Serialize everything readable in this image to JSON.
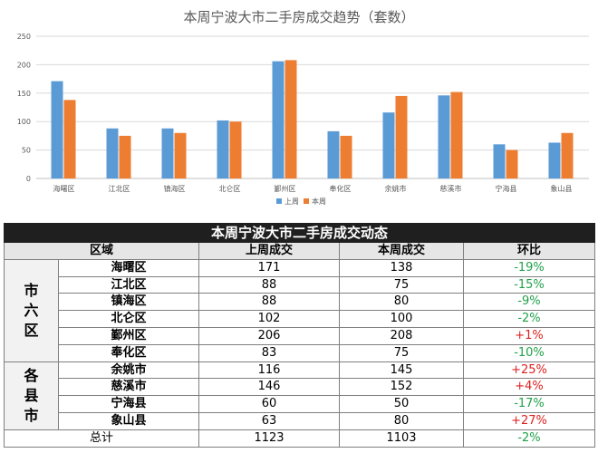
{
  "chart_data": {
    "type": "bar",
    "title": "本周宁波大市二手房成交趋势（套数）",
    "categories": [
      "海曙区",
      "江北区",
      "镇海区",
      "北仑区",
      "鄞州区",
      "奉化区",
      "余姚市",
      "慈溪市",
      "宁海县",
      "象山县"
    ],
    "series": [
      {
        "name": "上周",
        "values": [
          171,
          88,
          88,
          102,
          206,
          83,
          116,
          146,
          60,
          63
        ],
        "color": "#5b9bd5"
      },
      {
        "name": "本周",
        "values": [
          138,
          75,
          80,
          100,
          208,
          75,
          145,
          152,
          50,
          80
        ],
        "color": "#ed7d31"
      }
    ],
    "yticks": [
      "0",
      "50",
      "100",
      "150",
      "200",
      "250"
    ],
    "ylim": [
      0,
      250
    ],
    "grid": true,
    "legend_position": "bottom"
  },
  "table": {
    "title": "本周宁波大市二手房成交动态",
    "headers": {
      "region": "区域",
      "last_week": "上周成交",
      "this_week": "本周成交",
      "change": "环比"
    },
    "groups": [
      {
        "label": "市六区",
        "rows": [
          {
            "name": "海曙区",
            "last": "171",
            "this": "138",
            "change": "-19%",
            "trend": "down"
          },
          {
            "name": "江北区",
            "last": "88",
            "this": "75",
            "change": "-15%",
            "trend": "down"
          },
          {
            "name": "镇海区",
            "last": "88",
            "this": "80",
            "change": "-9%",
            "trend": "down"
          },
          {
            "name": "北仑区",
            "last": "102",
            "this": "100",
            "change": "-2%",
            "trend": "down"
          },
          {
            "name": "鄞州区",
            "last": "206",
            "this": "208",
            "change": "+1%",
            "trend": "up"
          },
          {
            "name": "奉化区",
            "last": "83",
            "this": "75",
            "change": "-10%",
            "trend": "down"
          }
        ]
      },
      {
        "label": "各县市",
        "rows": [
          {
            "name": "余姚市",
            "last": "116",
            "this": "145",
            "change": "+25%",
            "trend": "up"
          },
          {
            "name": "慈溪市",
            "last": "146",
            "this": "152",
            "change": "+4%",
            "trend": "up"
          },
          {
            "name": "宁海县",
            "last": "60",
            "this": "50",
            "change": "-17%",
            "trend": "down"
          },
          {
            "name": "象山县",
            "last": "63",
            "this": "80",
            "change": "+27%",
            "trend": "up"
          }
        ]
      }
    ],
    "total": {
      "label": "总计",
      "last": "1123",
      "this": "1103",
      "change": "-2%",
      "trend": "down"
    }
  }
}
